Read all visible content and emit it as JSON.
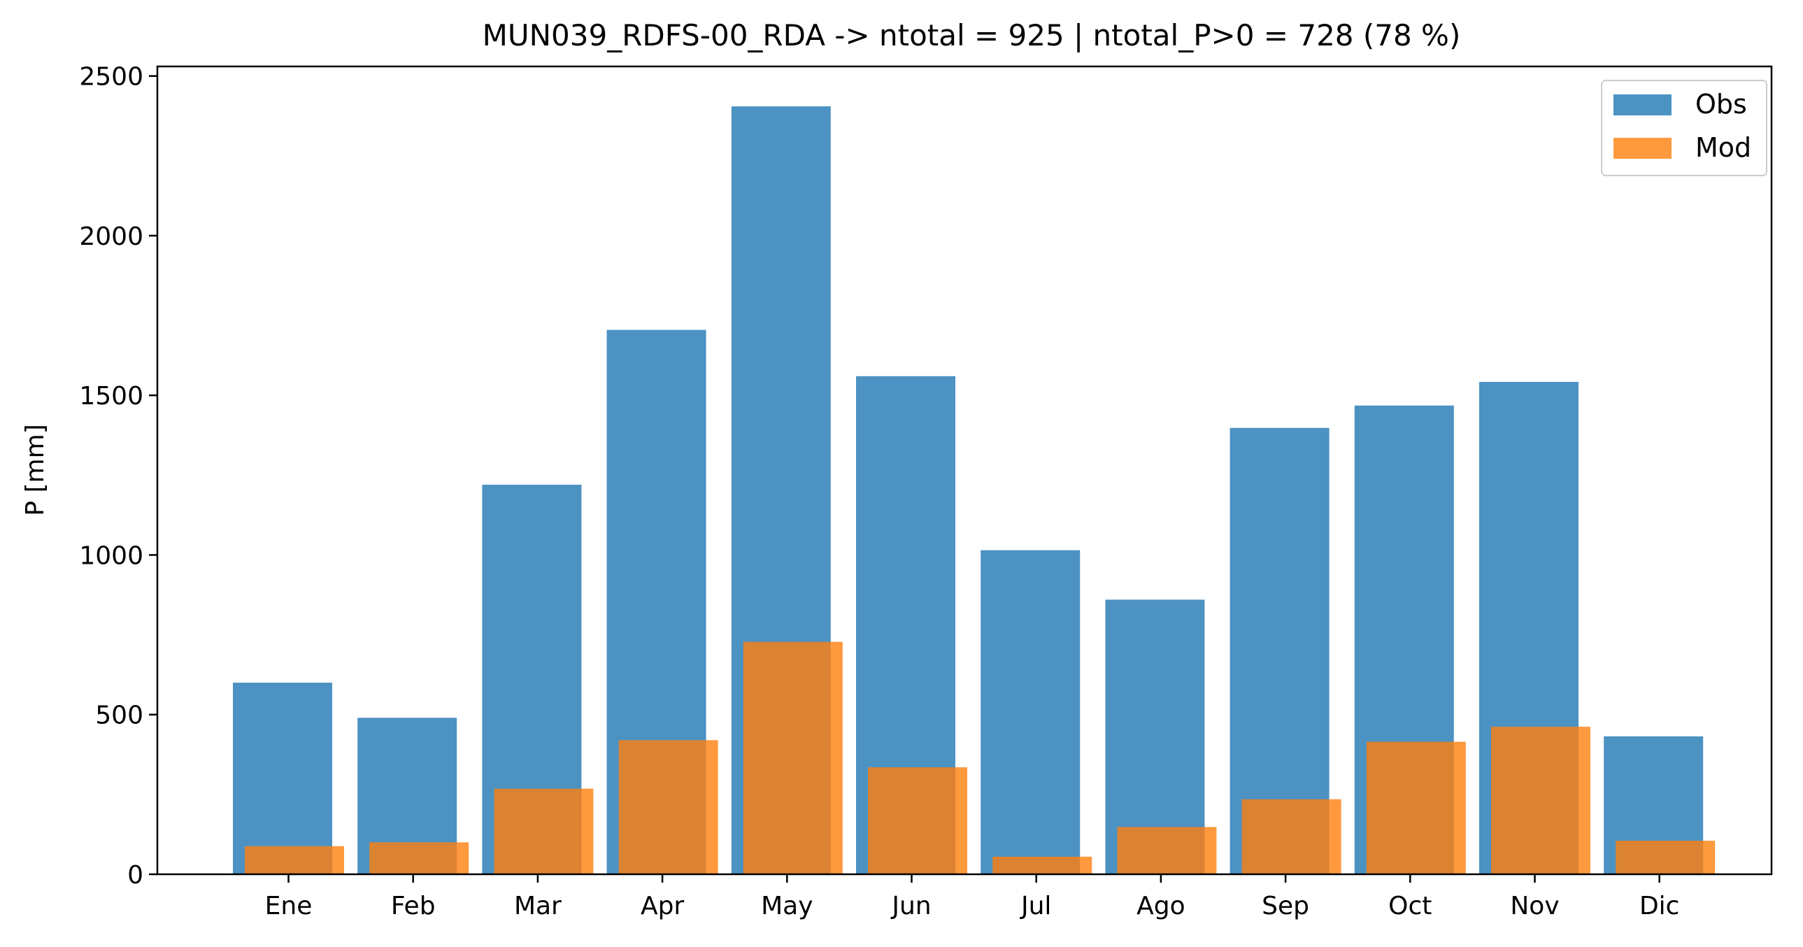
{
  "chart_data": {
    "type": "bar",
    "title": "MUN039_RDFS-00_RDA -> ntotal = 925 | ntotal_P>0 = 728 (78 %)",
    "xlabel": "",
    "ylabel": "P [mm]",
    "ylim": [
      0,
      2530
    ],
    "yticks": [
      0,
      500,
      1000,
      1500,
      2000,
      2500
    ],
    "categories": [
      "Ene",
      "Feb",
      "Mar",
      "Apr",
      "May",
      "Jun",
      "Jul",
      "Ago",
      "Sep",
      "Oct",
      "Nov",
      "Dic"
    ],
    "series": [
      {
        "name": "Obs",
        "color": "#1f77b4",
        "opacity": 0.8,
        "values": [
          600,
          490,
          1220,
          1705,
          2405,
          1560,
          1015,
          860,
          1398,
          1468,
          1542,
          432
        ]
      },
      {
        "name": "Mod",
        "color": "#ff7f0e",
        "opacity": 0.8,
        "values": [
          88,
          100,
          268,
          420,
          728,
          335,
          55,
          148,
          235,
          415,
          462,
          105
        ]
      }
    ],
    "legend_position": "top-right",
    "grid": false
  }
}
